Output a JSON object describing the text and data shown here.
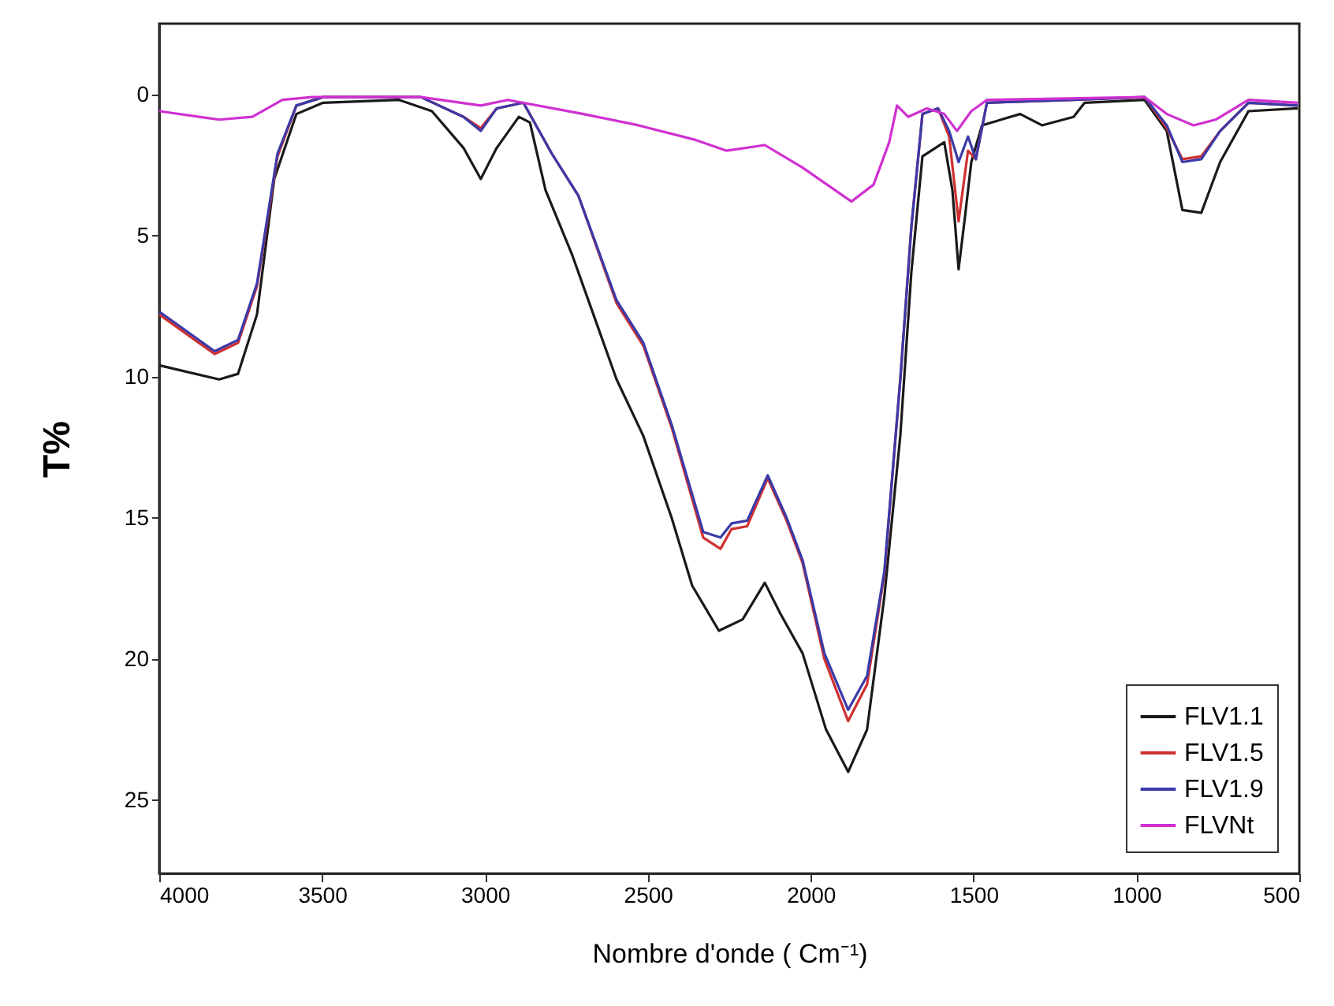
{
  "chart_data": {
    "type": "line",
    "xlabel": "Nombre d'onde ( Cm⁻¹)",
    "ylabel": "T%",
    "xlim": [
      4000,
      500
    ],
    "ylim": [
      27.6,
      -2.5
    ],
    "xticks": [
      4000,
      3500,
      3000,
      2500,
      2000,
      1500,
      1000,
      500
    ],
    "yticks": [
      0,
      5,
      10,
      15,
      20,
      25
    ],
    "grid": false,
    "legend": "bottom right",
    "marker": "none",
    "line_style": "solid",
    "series": [
      {
        "name": "FLV1.1",
        "color": "#1a1a1a",
        "x": [
          4000,
          3816,
          3758,
          3700,
          3647,
          3579,
          3497,
          3264,
          3163,
          3066,
          3013,
          2964,
          2896,
          2862,
          2814,
          2732,
          2596,
          2514,
          2427,
          2364,
          2282,
          2209,
          2141,
          2093,
          2025,
          1953,
          1885,
          1827,
          1774,
          1725,
          1691,
          1657,
          1590,
          1565,
          1546,
          1527,
          1507,
          1474,
          1357,
          1290,
          1193,
          1159,
          975,
          907,
          859,
          801,
          743,
          656,
          505
        ],
        "values": [
          9.6,
          10.1,
          9.9,
          7.8,
          3.0,
          0.7,
          0.3,
          0.2,
          0.6,
          1.9,
          3.0,
          1.9,
          0.8,
          1.0,
          3.4,
          5.7,
          10.1,
          12.1,
          15.0,
          17.4,
          19.0,
          18.6,
          17.3,
          18.4,
          19.8,
          22.5,
          24.0,
          22.5,
          17.8,
          12.1,
          6.3,
          2.2,
          1.7,
          3.4,
          6.2,
          4.4,
          2.4,
          1.1,
          0.7,
          1.1,
          0.8,
          0.3,
          0.2,
          1.3,
          4.1,
          4.2,
          2.4,
          0.6,
          0.5
        ]
      },
      {
        "name": "FLV1.5",
        "color": "#d03030",
        "x": [
          4000,
          3830,
          3758,
          3700,
          3637,
          3579,
          3497,
          3197,
          3066,
          3013,
          2964,
          2882,
          2795,
          2713,
          2596,
          2514,
          2427,
          2330,
          2277,
          2243,
          2195,
          2132,
          2074,
          2025,
          1958,
          1885,
          1827,
          1774,
          1725,
          1691,
          1657,
          1609,
          1575,
          1546,
          1517,
          1493,
          1459,
          1193,
          975,
          907,
          859,
          801,
          743,
          656,
          505
        ],
        "values": [
          7.8,
          9.2,
          8.8,
          6.8,
          2.2,
          0.4,
          0.1,
          0.1,
          0.8,
          1.2,
          0.5,
          0.3,
          2.1,
          3.6,
          7.4,
          8.9,
          11.8,
          15.7,
          16.1,
          15.4,
          15.3,
          13.6,
          15.1,
          16.6,
          20.0,
          22.2,
          20.9,
          17.0,
          10.1,
          4.7,
          0.7,
          0.5,
          1.5,
          4.5,
          2.0,
          2.3,
          0.3,
          0.2,
          0.1,
          1.2,
          2.3,
          2.2,
          1.3,
          0.3,
          0.4
        ]
      },
      {
        "name": "FLV1.9",
        "color": "#3a3aa8",
        "x": [
          4000,
          3830,
          3758,
          3700,
          3637,
          3579,
          3497,
          3197,
          3066,
          3013,
          2964,
          2882,
          2795,
          2713,
          2596,
          2514,
          2427,
          2330,
          2277,
          2243,
          2195,
          2132,
          2074,
          2025,
          1958,
          1885,
          1827,
          1774,
          1725,
          1691,
          1657,
          1609,
          1575,
          1546,
          1517,
          1493,
          1459,
          1193,
          975,
          907,
          859,
          801,
          743,
          656,
          505
        ],
        "values": [
          7.7,
          9.1,
          8.7,
          6.7,
          2.1,
          0.4,
          0.1,
          0.1,
          0.8,
          1.3,
          0.5,
          0.3,
          2.1,
          3.6,
          7.3,
          8.8,
          11.7,
          15.5,
          15.7,
          15.2,
          15.1,
          13.5,
          15.0,
          16.5,
          19.8,
          21.8,
          20.6,
          16.9,
          10.1,
          4.7,
          0.7,
          0.5,
          1.3,
          2.4,
          1.5,
          2.3,
          0.3,
          0.2,
          0.1,
          1.1,
          2.4,
          2.3,
          1.3,
          0.3,
          0.4
        ]
      },
      {
        "name": "FLVNt",
        "color": "#d030d0",
        "x": [
          4000,
          3816,
          3714,
          3622,
          3531,
          3197,
          3013,
          2930,
          2698,
          2529,
          2359,
          2258,
          2141,
          2025,
          1875,
          1807,
          1759,
          1735,
          1701,
          1643,
          1590,
          1551,
          1507,
          1459,
          975,
          907,
          825,
          757,
          656,
          505
        ],
        "values": [
          0.6,
          0.9,
          0.8,
          0.2,
          0.1,
          0.1,
          0.4,
          0.2,
          0.7,
          1.1,
          1.6,
          2.0,
          1.8,
          2.6,
          3.8,
          3.2,
          1.7,
          0.4,
          0.8,
          0.5,
          0.7,
          1.3,
          0.6,
          0.2,
          0.1,
          0.7,
          1.1,
          0.9,
          0.2,
          0.3
        ]
      }
    ]
  }
}
